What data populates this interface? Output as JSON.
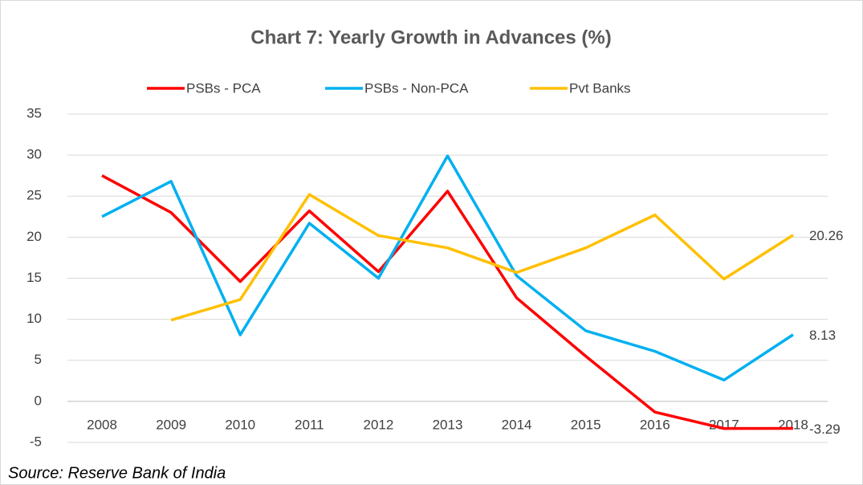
{
  "chart_data": {
    "type": "line",
    "title": "Chart 7: Yearly Growth in Advances (%)",
    "source": "Source: Reserve Bank of India",
    "categories": [
      "2008",
      "2009",
      "2010",
      "2011",
      "2012",
      "2013",
      "2014",
      "2015",
      "2016",
      "2017",
      "2018"
    ],
    "series": [
      {
        "name": "PSBs - PCA",
        "color": "#ff0000",
        "values": [
          27.5,
          23.0,
          14.6,
          23.2,
          15.8,
          25.6,
          12.6,
          5.5,
          -1.3,
          -3.3,
          -3.29
        ]
      },
      {
        "name": "PSBs - Non-PCA",
        "color": "#00b0f0",
        "values": [
          22.5,
          26.8,
          8.1,
          21.7,
          15.0,
          29.9,
          15.3,
          8.6,
          6.1,
          2.6,
          8.13
        ]
      },
      {
        "name": "Pvt Banks",
        "color": "#ffc000",
        "values": [
          null,
          9.9,
          12.4,
          25.2,
          20.2,
          18.7,
          15.7,
          18.7,
          22.7,
          14.9,
          20.26
        ]
      }
    ],
    "ylim": [
      -5,
      35
    ],
    "yticks": [
      -5,
      0,
      5,
      10,
      15,
      20,
      25,
      30,
      35
    ],
    "grid": true,
    "legend": "top"
  }
}
